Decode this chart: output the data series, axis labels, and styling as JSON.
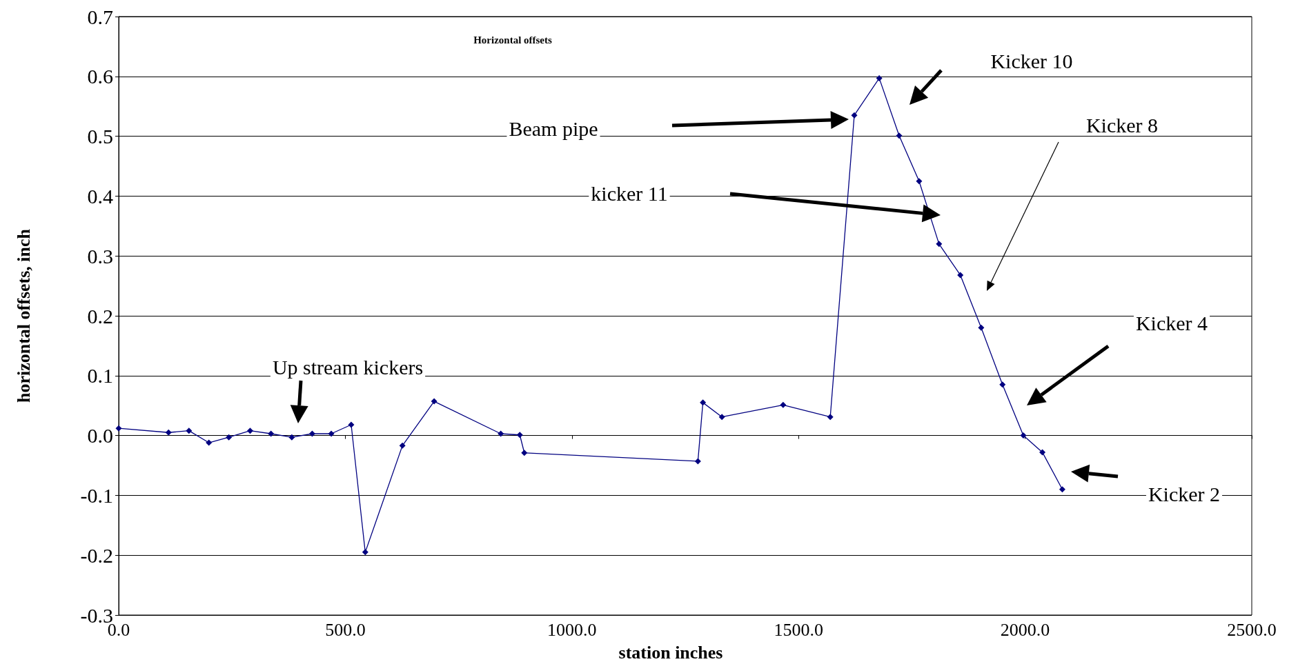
{
  "chart_data": {
    "type": "line",
    "title": "Horizontal offsets",
    "xlabel": "station inches",
    "ylabel": "horizontal offsets, inch",
    "x": [
      0,
      110,
      155,
      199,
      243,
      290,
      336,
      382,
      427,
      469,
      513,
      544,
      626,
      696,
      843,
      885,
      895,
      1278,
      1289,
      1331,
      1466,
      1570,
      1623,
      1678,
      1722,
      1766,
      1810,
      1857,
      1903,
      1950,
      1996,
      2038,
      2082
    ],
    "series": [
      {
        "color": "#000080",
        "values": [
          0.012,
          0.005,
          0.008,
          -0.012,
          -0.003,
          0.008,
          0.003,
          -0.003,
          0.003,
          0.003,
          0.018,
          -0.195,
          -0.017,
          0.057,
          0.003,
          0.001,
          -0.029,
          -0.043,
          0.055,
          0.031,
          0.051,
          0.031,
          0.535,
          0.597,
          0.501,
          0.425,
          0.32,
          0.268,
          0.18,
          0.085,
          0.0,
          -0.028,
          -0.09
        ]
      }
    ],
    "xlim": [
      0,
      2500
    ],
    "xticks": [
      {
        "value": 0,
        "label": "0.0"
      },
      {
        "value": 500,
        "label": "500.0"
      },
      {
        "value": 1000,
        "label": "1000.0"
      },
      {
        "value": 1500,
        "label": "1500.0"
      },
      {
        "value": 2000,
        "label": "2000.0"
      },
      {
        "value": 2500,
        "label": "2500.0"
      }
    ],
    "ylim": [
      -0.3,
      0.7
    ],
    "yticks": [
      {
        "value": -0.3,
        "label": "-0.3"
      },
      {
        "value": -0.2,
        "label": "-0.2"
      },
      {
        "value": -0.1,
        "label": "-0.1"
      },
      {
        "value": 0,
        "label": "0.0"
      },
      {
        "value": 0.1,
        "label": "0.1"
      },
      {
        "value": 0.2,
        "label": "0.2"
      },
      {
        "value": 0.3,
        "label": "0.3"
      },
      {
        "value": 0.4,
        "label": "0.4"
      },
      {
        "value": 0.5,
        "label": "0.5"
      },
      {
        "value": 0.6,
        "label": "0.6"
      },
      {
        "value": 0.7,
        "label": "0.7"
      }
    ],
    "grid": "y",
    "marker": "diamond",
    "line_style": "solid",
    "annotations": [
      "Beam pipe",
      "Kicker 10",
      "kicker 11",
      "Kicker 8",
      "Kicker 4",
      "Kicker 2",
      "Up stream kickers"
    ]
  }
}
